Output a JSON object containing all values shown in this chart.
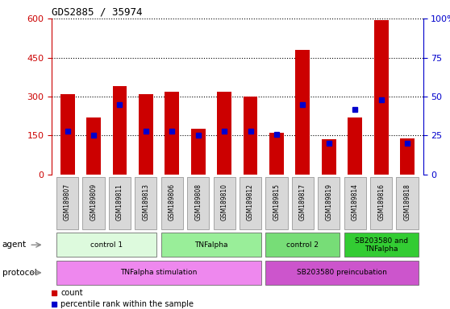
{
  "title": "GDS2885 / 35974",
  "samples": [
    "GSM189807",
    "GSM189809",
    "GSM189811",
    "GSM189813",
    "GSM189806",
    "GSM189808",
    "GSM189810",
    "GSM189812",
    "GSM189815",
    "GSM189817",
    "GSM189819",
    "GSM189814",
    "GSM189816",
    "GSM189818"
  ],
  "counts": [
    310,
    220,
    340,
    310,
    320,
    175,
    320,
    300,
    160,
    480,
    135,
    220,
    595,
    140
  ],
  "percentile_ranks": [
    28,
    25,
    45,
    28,
    28,
    25,
    28,
    28,
    26,
    45,
    20,
    42,
    48,
    20
  ],
  "ylim_left": [
    0,
    600
  ],
  "ylim_right": [
    0,
    100
  ],
  "yticks_left": [
    0,
    150,
    300,
    450,
    600
  ],
  "yticks_right": [
    0,
    25,
    50,
    75,
    100
  ],
  "bar_color": "#cc0000",
  "marker_color": "#0000cc",
  "agent_groups": [
    {
      "label": "control 1",
      "start": 0,
      "end": 3,
      "color": "#ddfadd"
    },
    {
      "label": "TNFalpha",
      "start": 4,
      "end": 7,
      "color": "#99ee99"
    },
    {
      "label": "control 2",
      "start": 8,
      "end": 10,
      "color": "#77dd77"
    },
    {
      "label": "SB203580 and\nTNFalpha",
      "start": 11,
      "end": 13,
      "color": "#33cc33"
    }
  ],
  "protocol_groups": [
    {
      "label": "TNFalpha stimulation",
      "start": 0,
      "end": 7,
      "color": "#ee88ee"
    },
    {
      "label": "SB203580 preincubation",
      "start": 8,
      "end": 13,
      "color": "#cc55cc"
    }
  ],
  "legend_items": [
    {
      "label": "count",
      "color": "#cc0000"
    },
    {
      "label": "percentile rank within the sample",
      "color": "#0000cc"
    }
  ],
  "bar_width": 0.55,
  "bg_color": "#ffffff",
  "tick_label_color_left": "#cc0000",
  "tick_label_color_right": "#0000cc"
}
